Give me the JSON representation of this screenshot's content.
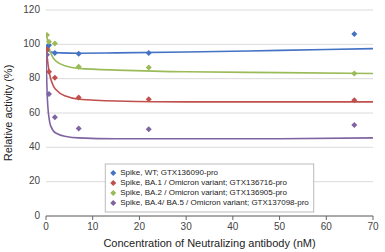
{
  "chart_data": {
    "type": "scatter",
    "xlabel": "Concentration of Neutralizing antibody (nM)",
    "ylabel": "Relative activity (%)",
    "xlim": [
      0,
      70
    ],
    "ylim": [
      0,
      120
    ],
    "xticks": [
      0,
      10,
      20,
      30,
      40,
      50,
      60,
      70
    ],
    "yticks": [
      0,
      20,
      40,
      60,
      80,
      100,
      120
    ],
    "grid": "y",
    "legend": "lower center",
    "marker": "diamond",
    "series": [
      {
        "name": "Spike, WT; GTX136090-pro",
        "color": "#4472C4",
        "x": [
          0.21,
          0.64,
          1.9,
          7.0,
          22.0,
          66.0
        ],
        "values": [
          98.5,
          99.5,
          95.0,
          94.5,
          95.0,
          106.0
        ],
        "curve_x": [
          0.0,
          0.3,
          1.0,
          3.0,
          7.0,
          15.0,
          30.0,
          50.0,
          70.0
        ],
        "curve_values": [
          97.0,
          96.5,
          95.5,
          95.0,
          94.8,
          95.0,
          95.5,
          96.5,
          97.5
        ]
      },
      {
        "name": "Spike, BA.1 / Omicron variant; GTX136716-pro",
        "color": "#C0504D",
        "x": [
          0.21,
          0.64,
          1.9,
          7.0,
          22.0,
          66.0
        ],
        "values": [
          97.0,
          84.0,
          80.5,
          69.0,
          68.0,
          67.5
        ],
        "curve_x": [
          0.0,
          0.2,
          0.5,
          1.0,
          2.0,
          4.0,
          7.0,
          15.0,
          30.0,
          50.0,
          70.0
        ],
        "curve_values": [
          99.0,
          94.0,
          87.0,
          80.0,
          74.0,
          70.0,
          68.0,
          67.0,
          66.5,
          66.5,
          66.5
        ]
      },
      {
        "name": "Spike, BA.2 / Omicron variant; GTX136905-pro",
        "color": "#9BBB59",
        "x": [
          0.21,
          0.64,
          1.9,
          7.0,
          22.0,
          66.0
        ],
        "values": [
          105.5,
          101.5,
          100.5,
          87.0,
          86.5,
          83.0
        ],
        "curve_x": [
          0.0,
          0.2,
          0.5,
          1.0,
          2.0,
          4.0,
          7.0,
          15.0,
          30.0,
          50.0,
          70.0
        ],
        "curve_values": [
          106.0,
          104.0,
          100.0,
          95.0,
          90.5,
          87.5,
          86.0,
          85.0,
          84.0,
          83.5,
          83.0
        ]
      },
      {
        "name": "Spike, BA.4/ BA.5 / Omicron variant; GTX137098-pro",
        "color": "#8064A2",
        "x": [
          0.21,
          0.64,
          1.9,
          7.0,
          22.0,
          66.0
        ],
        "values": [
          94.0,
          71.0,
          57.5,
          51.0,
          50.5,
          53.0
        ],
        "curve_x": [
          0.0,
          0.15,
          0.3,
          0.6,
          1.0,
          2.0,
          4.0,
          7.0,
          15.0,
          30.0,
          50.0,
          70.0
        ],
        "curve_values": [
          95.0,
          80.0,
          68.0,
          58.0,
          52.5,
          48.5,
          46.5,
          45.5,
          45.0,
          45.0,
          45.0,
          45.5
        ]
      }
    ]
  }
}
